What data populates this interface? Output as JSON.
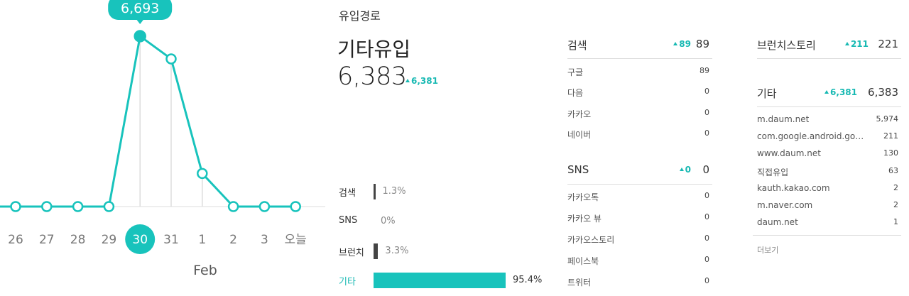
{
  "chart_data": {
    "type": "line",
    "categories": [
      "26",
      "27",
      "28",
      "29",
      "30",
      "31",
      "1",
      "2",
      "3",
      "오늘"
    ],
    "series": [
      {
        "values": [
          0,
          0,
          0,
          0,
          6693,
          5800,
          1300,
          0,
          0,
          0
        ]
      }
    ],
    "selected_index": 4,
    "tooltip": "6,693",
    "month_label": "Feb",
    "ylim": [
      0,
      7500
    ],
    "grid": false,
    "color": "#18c3bc"
  },
  "traffic": {
    "title": "유입경로",
    "selected_label": "기타유입",
    "selected_value": "6,383",
    "selected_delta": "6,381",
    "bars": [
      {
        "label": "검색",
        "percent": 1.3,
        "text": "1.3%"
      },
      {
        "label": "SNS",
        "percent": 0,
        "text": "0%"
      },
      {
        "label": "브런치",
        "percent": 3.3,
        "text": "3.3%"
      },
      {
        "label": "기타",
        "percent": 95.4,
        "text": "95.4%",
        "active": true
      }
    ]
  },
  "search": {
    "title": "검색",
    "delta": "89",
    "count": "89",
    "items": [
      {
        "name": "구글",
        "value": "89"
      },
      {
        "name": "다음",
        "value": "0"
      },
      {
        "name": "카카오",
        "value": "0"
      },
      {
        "name": "네이버",
        "value": "0"
      }
    ]
  },
  "sns": {
    "title": "SNS",
    "delta": "0",
    "count": "0",
    "items": [
      {
        "name": "카카오톡",
        "value": "0"
      },
      {
        "name": "카카오 뷰",
        "value": "0"
      },
      {
        "name": "카카오스토리",
        "value": "0"
      },
      {
        "name": "페이스북",
        "value": "0"
      },
      {
        "name": "트위터",
        "value": "0"
      }
    ]
  },
  "brunch": {
    "title": "브런치스토리",
    "delta": "211",
    "count": "221"
  },
  "etc": {
    "title": "기타",
    "delta": "6,381",
    "count": "6,383",
    "items": [
      {
        "name": "m.daum.net",
        "value": "5,974"
      },
      {
        "name": "com.google.android.goo…",
        "value": "211"
      },
      {
        "name": "www.daum.net",
        "value": "130"
      },
      {
        "name": "직접유입",
        "value": "63"
      },
      {
        "name": "kauth.kakao.com",
        "value": "2"
      },
      {
        "name": "m.naver.com",
        "value": "2"
      },
      {
        "name": "daum.net",
        "value": "1"
      }
    ],
    "more_label": "더보기"
  }
}
